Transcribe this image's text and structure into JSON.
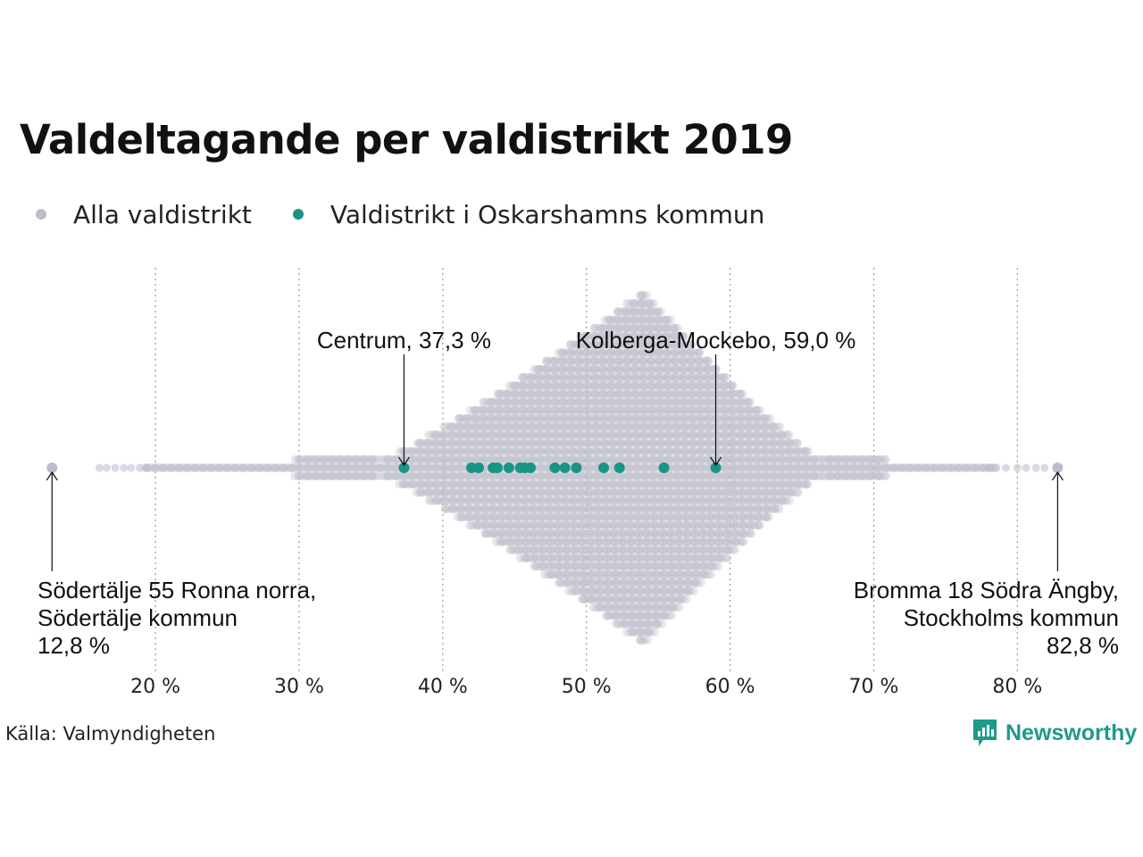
{
  "chart_data": {
    "type": "scatter",
    "title": "Valdeltagande per valdistrikt 2019",
    "xlim": [
      12,
      85
    ],
    "x_ticks": [
      20,
      30,
      40,
      50,
      60,
      70,
      80
    ],
    "x_tick_labels": [
      "20 %",
      "30 %",
      "40 %",
      "50 %",
      "60 %",
      "70 %",
      "80 %"
    ],
    "grid": "vertical dotted",
    "legend_position": "top-left",
    "series": [
      {
        "name": "Alla valdistrikt",
        "color": "#bdbcca",
        "distribution": "beeswarm of all voting districts, mode around 54 %",
        "values": [
          12.8,
          16.1,
          16.6,
          17.2,
          17.8,
          18.3,
          18.9,
          19.4,
          82.8,
          81.9,
          81.3,
          80.6,
          80.0,
          79.2,
          78.5,
          78.0
        ]
      },
      {
        "name": "Valdistrikt i Oskarshamns kommun",
        "color": "#1a9485",
        "values": [
          37.3,
          42.0,
          42.5,
          43.5,
          43.8,
          44.6,
          45.4,
          45.7,
          46.1,
          47.8,
          48.5,
          49.3,
          51.2,
          52.3,
          55.4,
          59.0
        ]
      }
    ],
    "annotations": [
      {
        "text": "Centrum, 37,3 %",
        "value": 37.3
      },
      {
        "text": "Kolberga-Mockebo, 59,0 %",
        "value": 59.0
      },
      {
        "lines": [
          "Södertälje 55 Ronna norra,",
          "Södertälje kommun",
          "12,8 %"
        ],
        "value": 12.8
      },
      {
        "lines": [
          "Bromma 18 Södra Ängby,",
          "Stockholms kommun",
          "82,8 %"
        ],
        "value": 82.8
      }
    ]
  },
  "legend": {
    "items": [
      {
        "label": "Alla valdistrikt",
        "color": "#bdbcca"
      },
      {
        "label": "Valdistrikt i Oskarshamns kommun",
        "color": "#1a9485"
      }
    ]
  },
  "footer": {
    "source": "Källa: Valmyndigheten",
    "logo": {
      "text": "Newsworthy",
      "icon": "newsworthy-logo-icon",
      "color": "#1d9a8a"
    }
  }
}
